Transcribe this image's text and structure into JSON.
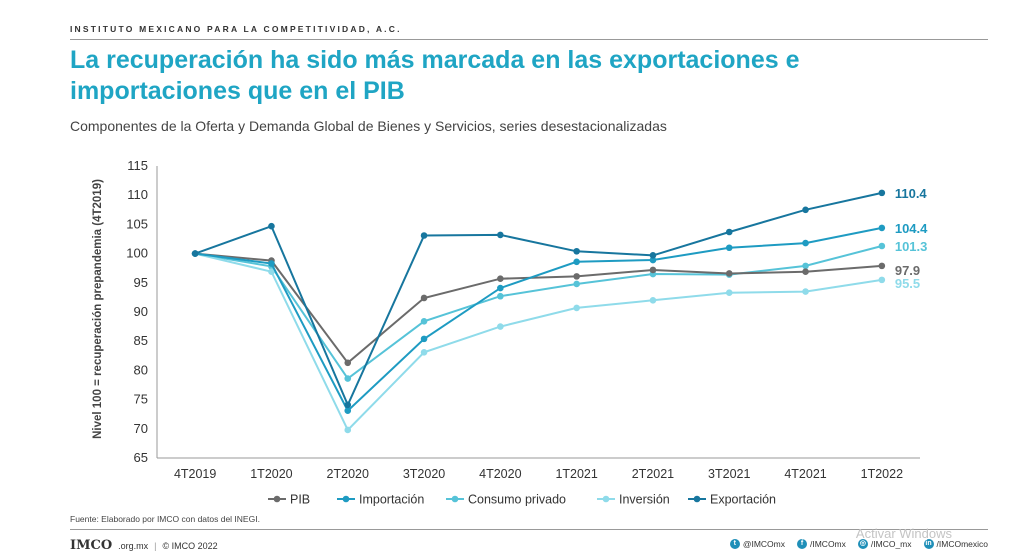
{
  "header": {
    "org": "INSTITUTO MEXICANO PARA LA COMPETITIVIDAD, A.C.",
    "title": "La recuperación ha sido más marcada en las exportaciones e importaciones que en el PIB",
    "subtitle": "Componentes  de la Oferta y Demanda  Global de Bienes y Servicios, series desestacionalizadas"
  },
  "chart_data": {
    "type": "line",
    "ylabel": "Nivel 100 = recuperación  prepandemia (4T2019)",
    "xlabel": "",
    "ylim": [
      65,
      115
    ],
    "yticks": [
      65,
      70,
      75,
      80,
      85,
      90,
      95,
      100,
      105,
      110,
      115
    ],
    "grid": false,
    "legend_position": "bottom",
    "categories": [
      "4T2019",
      "1T2020",
      "2T2020",
      "3T2020",
      "4T2020",
      "1T2021",
      "2T2021",
      "3T2021",
      "4T2021",
      "1T2022"
    ],
    "series": [
      {
        "name": "PIB",
        "color": "#6b6b6b",
        "end_label": "97.9",
        "values": [
          100,
          98.8,
          81.3,
          92.4,
          95.7,
          96.1,
          97.2,
          96.6,
          96.9,
          97.9
        ]
      },
      {
        "name": "Importación",
        "color": "#1e9bc2",
        "end_label": "104.4",
        "values": [
          100,
          98.3,
          73.1,
          85.4,
          94.1,
          98.6,
          98.9,
          101.0,
          101.8,
          104.4
        ]
      },
      {
        "name": "Consumo privado",
        "color": "#56c3d8",
        "end_label": "101.3",
        "values": [
          100,
          97.8,
          78.6,
          88.4,
          92.7,
          94.8,
          96.5,
          96.4,
          97.9,
          101.3
        ]
      },
      {
        "name": "Inversión",
        "color": "#8fdbea",
        "end_label": "95.5",
        "values": [
          100,
          96.9,
          69.8,
          83.1,
          87.5,
          90.7,
          92.0,
          93.3,
          93.5,
          95.5
        ]
      },
      {
        "name": "Exportación",
        "color": "#17769e",
        "end_label": "110.4",
        "values": [
          100,
          104.7,
          74.1,
          103.1,
          103.2,
          100.4,
          99.7,
          103.7,
          107.5,
          110.4
        ]
      }
    ]
  },
  "footer": {
    "source": "Fuente: Elaborado por IMCO con datos del INEGI.",
    "logo": "IMCO",
    "domain": ".org.mx",
    "copyright": "© IMCO 2022",
    "social": [
      {
        "icon": "twitter-icon",
        "glyph": "t",
        "handle": "@IMCOmx"
      },
      {
        "icon": "facebook-icon",
        "glyph": "f",
        "handle": "/IMCOmx"
      },
      {
        "icon": "instagram-icon",
        "glyph": "◎",
        "handle": "/IMCO_mx"
      },
      {
        "icon": "linkedin-icon",
        "glyph": "in",
        "handle": "/IMCOmexico"
      }
    ],
    "watermark": "Activar Windows"
  }
}
